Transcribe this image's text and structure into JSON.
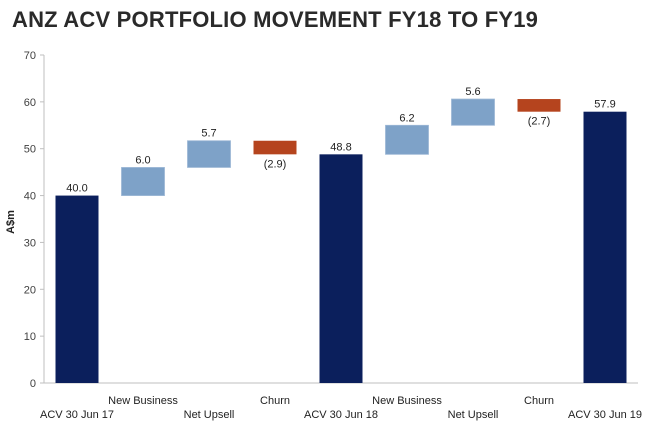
{
  "title": "ANZ ACV PORTFOLIO MOVEMENT FY18 TO FY19",
  "chart_data": {
    "type": "bar",
    "subtype": "waterfall",
    "title": "ANZ ACV PORTFOLIO MOVEMENT FY18 TO FY19",
    "xlabel": "",
    "ylabel": "A$m",
    "ylim": [
      0,
      70
    ],
    "yticks": [
      0,
      10,
      20,
      30,
      40,
      50,
      60,
      70
    ],
    "grid": false,
    "categories": [
      "ACV 30 Jun 17",
      "New Business",
      "Net Upsell",
      "Churn",
      "ACV 30 Jun 18",
      "New Business",
      "Net Upsell",
      "Churn",
      "ACV 30 Jun 19"
    ],
    "bars": [
      {
        "kind": "total",
        "start": 0,
        "end": 40.0,
        "label": "40.0"
      },
      {
        "kind": "increase",
        "start": 40.0,
        "end": 46.0,
        "label": "6.0"
      },
      {
        "kind": "increase",
        "start": 46.0,
        "end": 51.7,
        "label": "5.7"
      },
      {
        "kind": "decrease",
        "start": 51.7,
        "end": 48.8,
        "label": "(2.9)"
      },
      {
        "kind": "total",
        "start": 0,
        "end": 48.8,
        "label": "48.8"
      },
      {
        "kind": "increase",
        "start": 48.8,
        "end": 55.0,
        "label": "6.2"
      },
      {
        "kind": "increase",
        "start": 55.0,
        "end": 60.6,
        "label": "5.6"
      },
      {
        "kind": "decrease",
        "start": 60.6,
        "end": 57.9,
        "label": "(2.7)"
      },
      {
        "kind": "total",
        "start": 0,
        "end": 57.9,
        "label": "57.9"
      }
    ],
    "colors": {
      "total": "#0b1f5c",
      "increase": "#7ea2c8",
      "decrease": "#b5441e",
      "axis": "#bfbfbf"
    }
  }
}
